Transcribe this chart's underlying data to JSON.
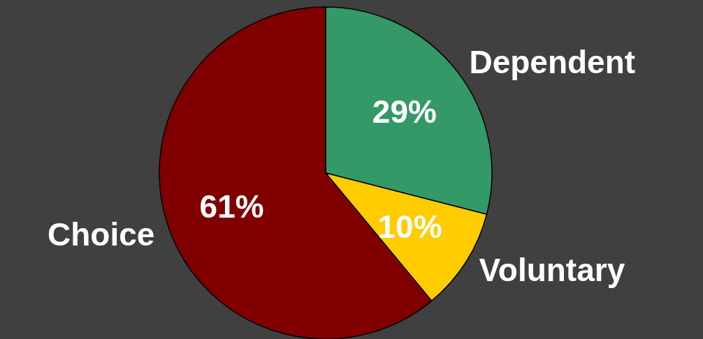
{
  "chart_data": {
    "type": "pie",
    "categories": [
      "Dependent",
      "Voluntary",
      "Choice"
    ],
    "values": [
      29,
      10,
      61
    ],
    "colors": [
      "#339966",
      "#ffcc00",
      "#800000"
    ],
    "value_labels": [
      "29%",
      "10%",
      "61%"
    ],
    "legend": false
  }
}
